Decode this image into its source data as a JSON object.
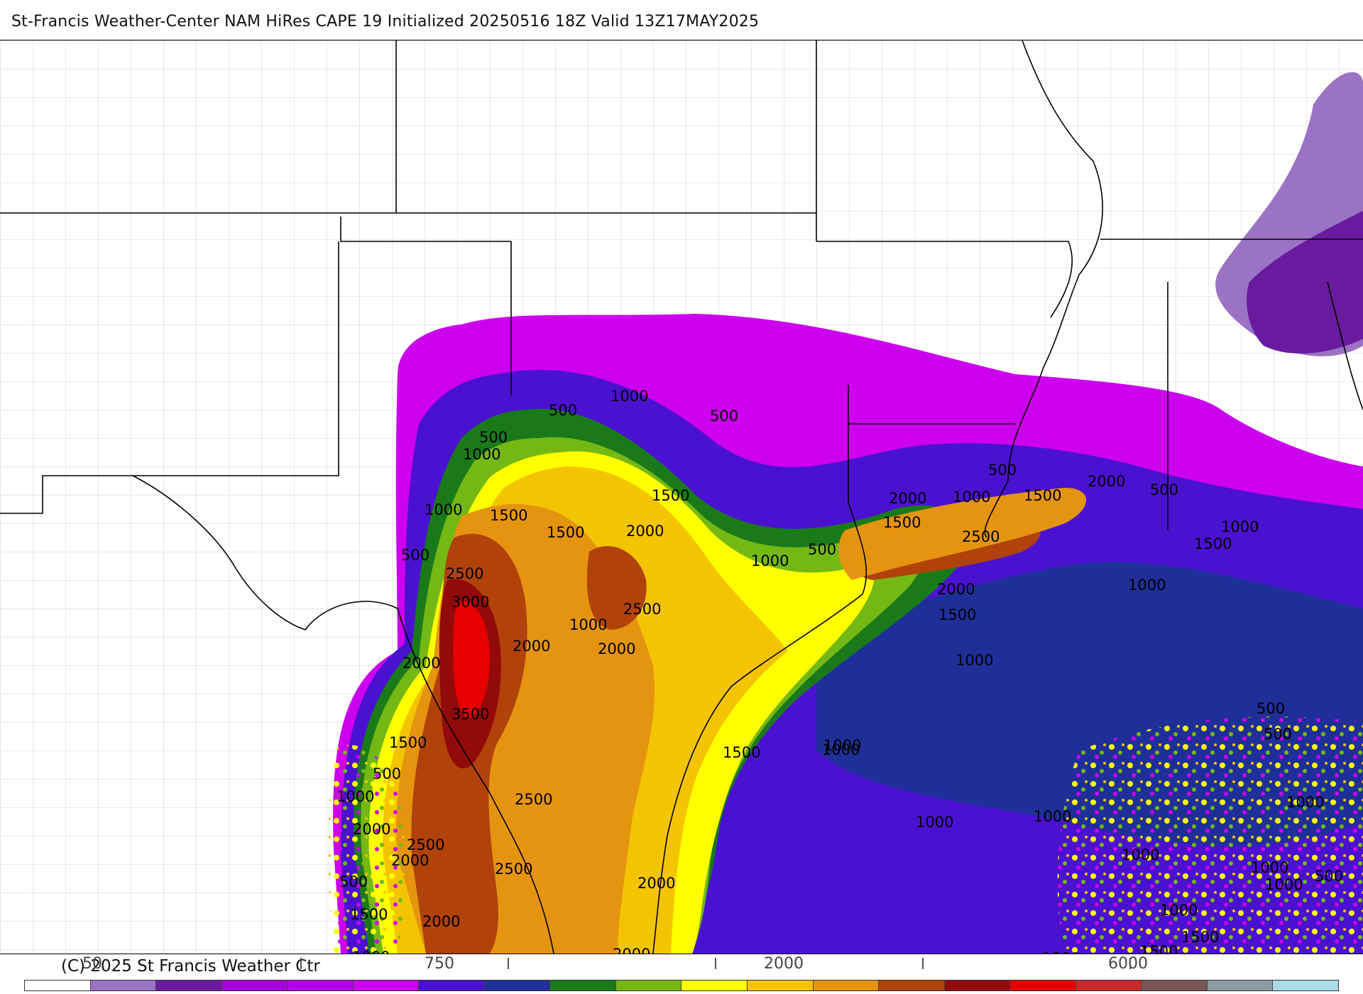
{
  "header": {
    "title": "St-Francis Weather-Center NAM HiRes CAPE  19 Initialized 20250516 18Z Valid 13Z17MAY2025"
  },
  "map": {
    "colors": {
      "bg": "#ffffff",
      "lav": "#9b72c4",
      "dpurple": "#6a1a9e",
      "magenta": "#cc00ee",
      "violet": "#4a12d0",
      "navy": "#1f2f9a",
      "dgreen": "#1a7a1a",
      "lgreen": "#74b814",
      "yellow": "#ffff00",
      "gold": "#f5c400",
      "orange": "#e59410",
      "brown": "#b0420a",
      "maroon": "#930a0a",
      "red": "#e60000"
    },
    "contour_labels": [
      {
        "text": "1000"
      },
      {
        "text": "500"
      },
      {
        "text": "500"
      },
      {
        "text": "1000"
      },
      {
        "text": "500"
      },
      {
        "text": "1000"
      },
      {
        "text": "1500"
      },
      {
        "text": "1000"
      },
      {
        "text": "1500"
      },
      {
        "text": "2000"
      },
      {
        "text": "1500"
      },
      {
        "text": "500"
      },
      {
        "text": "2500"
      },
      {
        "text": "3000"
      },
      {
        "text": "1000"
      },
      {
        "text": "2500"
      },
      {
        "text": "2000"
      },
      {
        "text": "2000"
      },
      {
        "text": "2000"
      },
      {
        "text": "3500"
      },
      {
        "text": "1500"
      },
      {
        "text": "500"
      },
      {
        "text": "1000"
      },
      {
        "text": "2500"
      },
      {
        "text": "2000"
      },
      {
        "text": "2500"
      },
      {
        "text": "2000"
      },
      {
        "text": "2500"
      },
      {
        "text": "500"
      },
      {
        "text": "1500"
      },
      {
        "text": "2000"
      },
      {
        "text": "1000"
      },
      {
        "text": "2500"
      },
      {
        "text": "2000"
      },
      {
        "text": "2000"
      },
      {
        "text": "1500"
      },
      {
        "text": "1000"
      },
      {
        "text": "500"
      },
      {
        "text": "2000"
      },
      {
        "text": "1000"
      },
      {
        "text": "1500"
      },
      {
        "text": "500"
      },
      {
        "text": "1500"
      },
      {
        "text": "2000"
      },
      {
        "text": "500"
      },
      {
        "text": "2500"
      },
      {
        "text": "1000"
      },
      {
        "text": "2000"
      },
      {
        "text": "1500"
      },
      {
        "text": "1000"
      },
      {
        "text": "1000"
      },
      {
        "text": "1000"
      },
      {
        "text": "1500"
      },
      {
        "text": "500"
      },
      {
        "text": "500"
      },
      {
        "text": "1000"
      },
      {
        "text": "1000"
      },
      {
        "text": "1000"
      },
      {
        "text": "1000"
      },
      {
        "text": "1000"
      },
      {
        "text": "1000"
      },
      {
        "text": "500"
      },
      {
        "text": "1000"
      },
      {
        "text": "1500"
      },
      {
        "text": "1500"
      },
      {
        "text": "1500"
      },
      {
        "text": "1000"
      }
    ]
  },
  "legend": {
    "swatches": [
      "#ffffff",
      "#9b72c4",
      "#6a1a9e",
      "#a800d8",
      "#b400e8",
      "#cc00ee",
      "#4a12d0",
      "#1f2f9a",
      "#1a7a1a",
      "#74b814",
      "#ffff00",
      "#f5c400",
      "#e59410",
      "#b0420a",
      "#930a0a",
      "#e60000",
      "#c82a2a",
      "#7a5555",
      "#8c9ca4",
      "#a8dce8"
    ],
    "tick_labels": [
      "50",
      "750",
      "2000",
      "6000"
    ],
    "copyright": "(C) 2025 St Francis Weather Ctr"
  }
}
